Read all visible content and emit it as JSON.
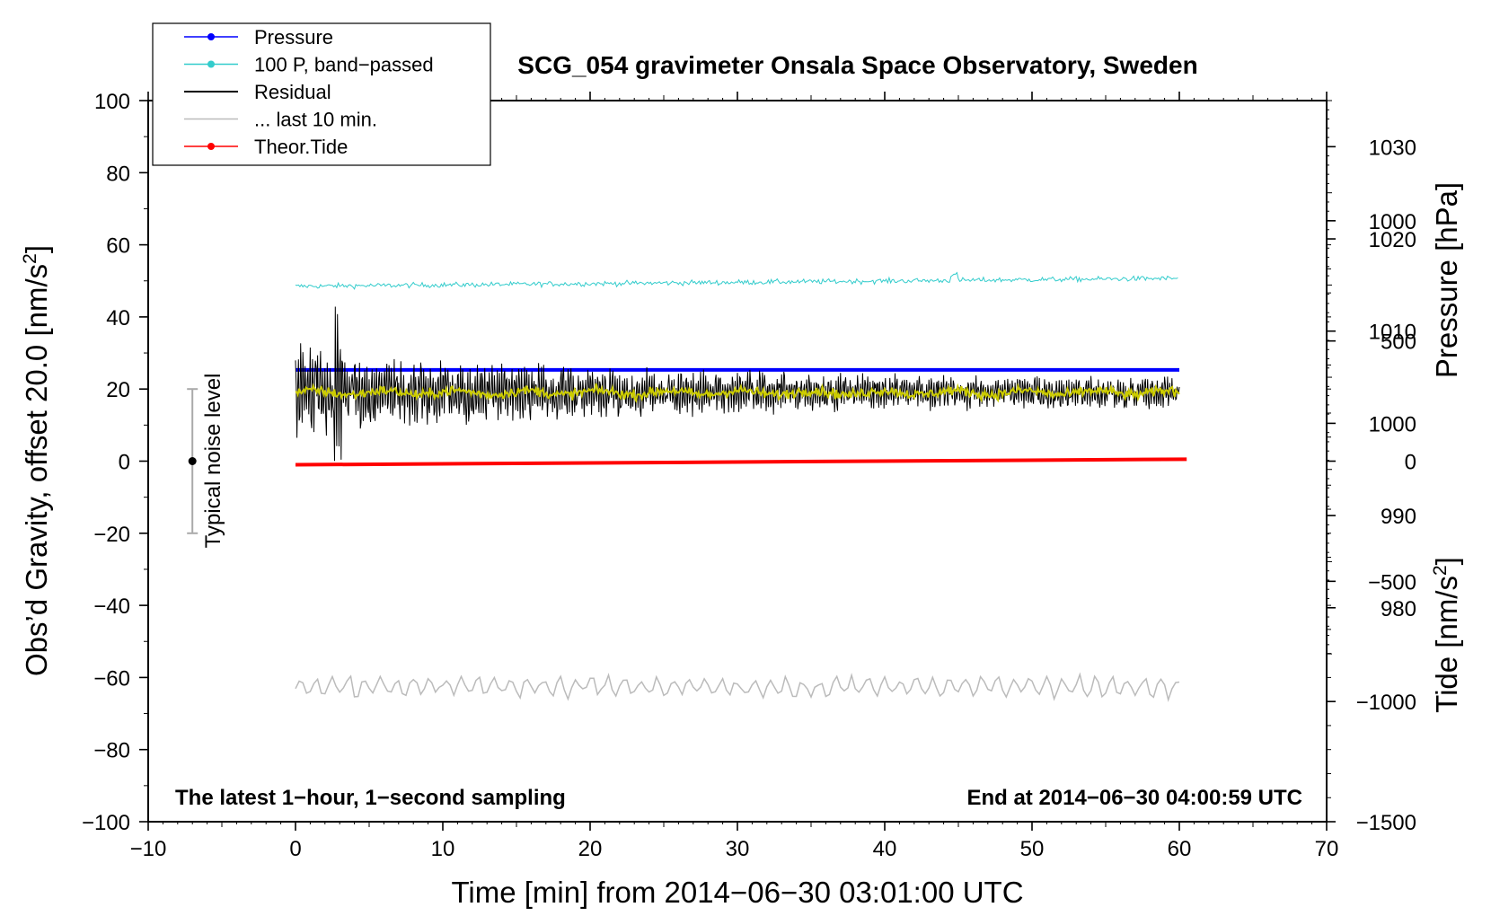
{
  "chart_data": {
    "type": "line",
    "title": "SCG_054 gravimeter Onsala Space Observatory, Sweden",
    "xlabel": "Time [min] from 2014−06−30 03:01:00 UTC",
    "ylabel_left_main": "Obs’d Gravity, offset 20.0 [nm/s",
    "ylabel_left_sup": "2",
    "ylabel_left_close": "]",
    "ylabel_pressure": "Pressure [hPa]",
    "ylabel_tide_main": "Tide [nm/s",
    "ylabel_tide_sup": "2",
    "ylabel_tide_close": "]",
    "xlim": [
      -10,
      70
    ],
    "ylim": [
      -100,
      100
    ],
    "x_ticks": [
      "−10",
      "0",
      "10",
      "20",
      "30",
      "40",
      "50",
      "60",
      "70"
    ],
    "y_ticks_left": [
      "−100",
      "−80",
      "−60",
      "−40",
      "−20",
      "0",
      "20",
      "40",
      "60",
      "80",
      "100"
    ],
    "pressure_axis": {
      "range": [
        956.8,
        1035.0
      ],
      "ticks": [
        "980",
        "990",
        "1000",
        "1010",
        "1020",
        "1030"
      ]
    },
    "tide_axis": {
      "range": [
        -1500,
        1500
      ],
      "ticks": [
        "−1500",
        "−1000",
        "−500",
        "0",
        "500",
        "1000"
      ]
    },
    "legend": [
      {
        "label": "Pressure",
        "color": "#0000ff",
        "marker": true
      },
      {
        "label": "100 P, band−passed",
        "color": "#33cccc",
        "marker": true
      },
      {
        "label": "Residual",
        "color": "#000000",
        "marker": false
      },
      {
        "label": "... last 10 min.",
        "color": "#bbbbbb",
        "marker": false
      },
      {
        "label": "Theor.Tide",
        "color": "#ff0000",
        "marker": true
      }
    ],
    "series": [
      {
        "name": "Pressure",
        "color": "#0000ff",
        "axis": "pressure",
        "x": [
          0,
          60
        ],
        "values": [
          1005.8,
          1005.8
        ]
      },
      {
        "name": "100 P, band−passed",
        "color": "#33cccc",
        "axis": "left",
        "center_start": 48.5,
        "center_end": 50.7,
        "amplitude": 0.9
      },
      {
        "name": "Residual",
        "color": "#000000",
        "axis": "left",
        "center": 19.0,
        "amplitude_start": 14,
        "amplitude_end": 3.5
      },
      {
        "name": "Residual (smoothed)",
        "color": "#cccc00",
        "axis": "left",
        "center": 19.0,
        "amplitude": 1.6
      },
      {
        "name": "... last 10 min.",
        "color": "#bbbbbb",
        "axis": "left",
        "center": -62.5,
        "amplitude": 3.2
      },
      {
        "name": "Theor.Tide",
        "color": "#ff0000",
        "axis": "tide",
        "x": [
          0,
          60.5
        ],
        "values": [
          -15,
          8
        ]
      }
    ],
    "noise_bar": {
      "label": "Typical noise level",
      "x": -7,
      "center": 0,
      "low": -20,
      "high": 20
    },
    "annotation_left": "The latest 1−hour, 1−second sampling",
    "annotation_right": "End at 2014−06−30 04:00:59 UTC"
  }
}
